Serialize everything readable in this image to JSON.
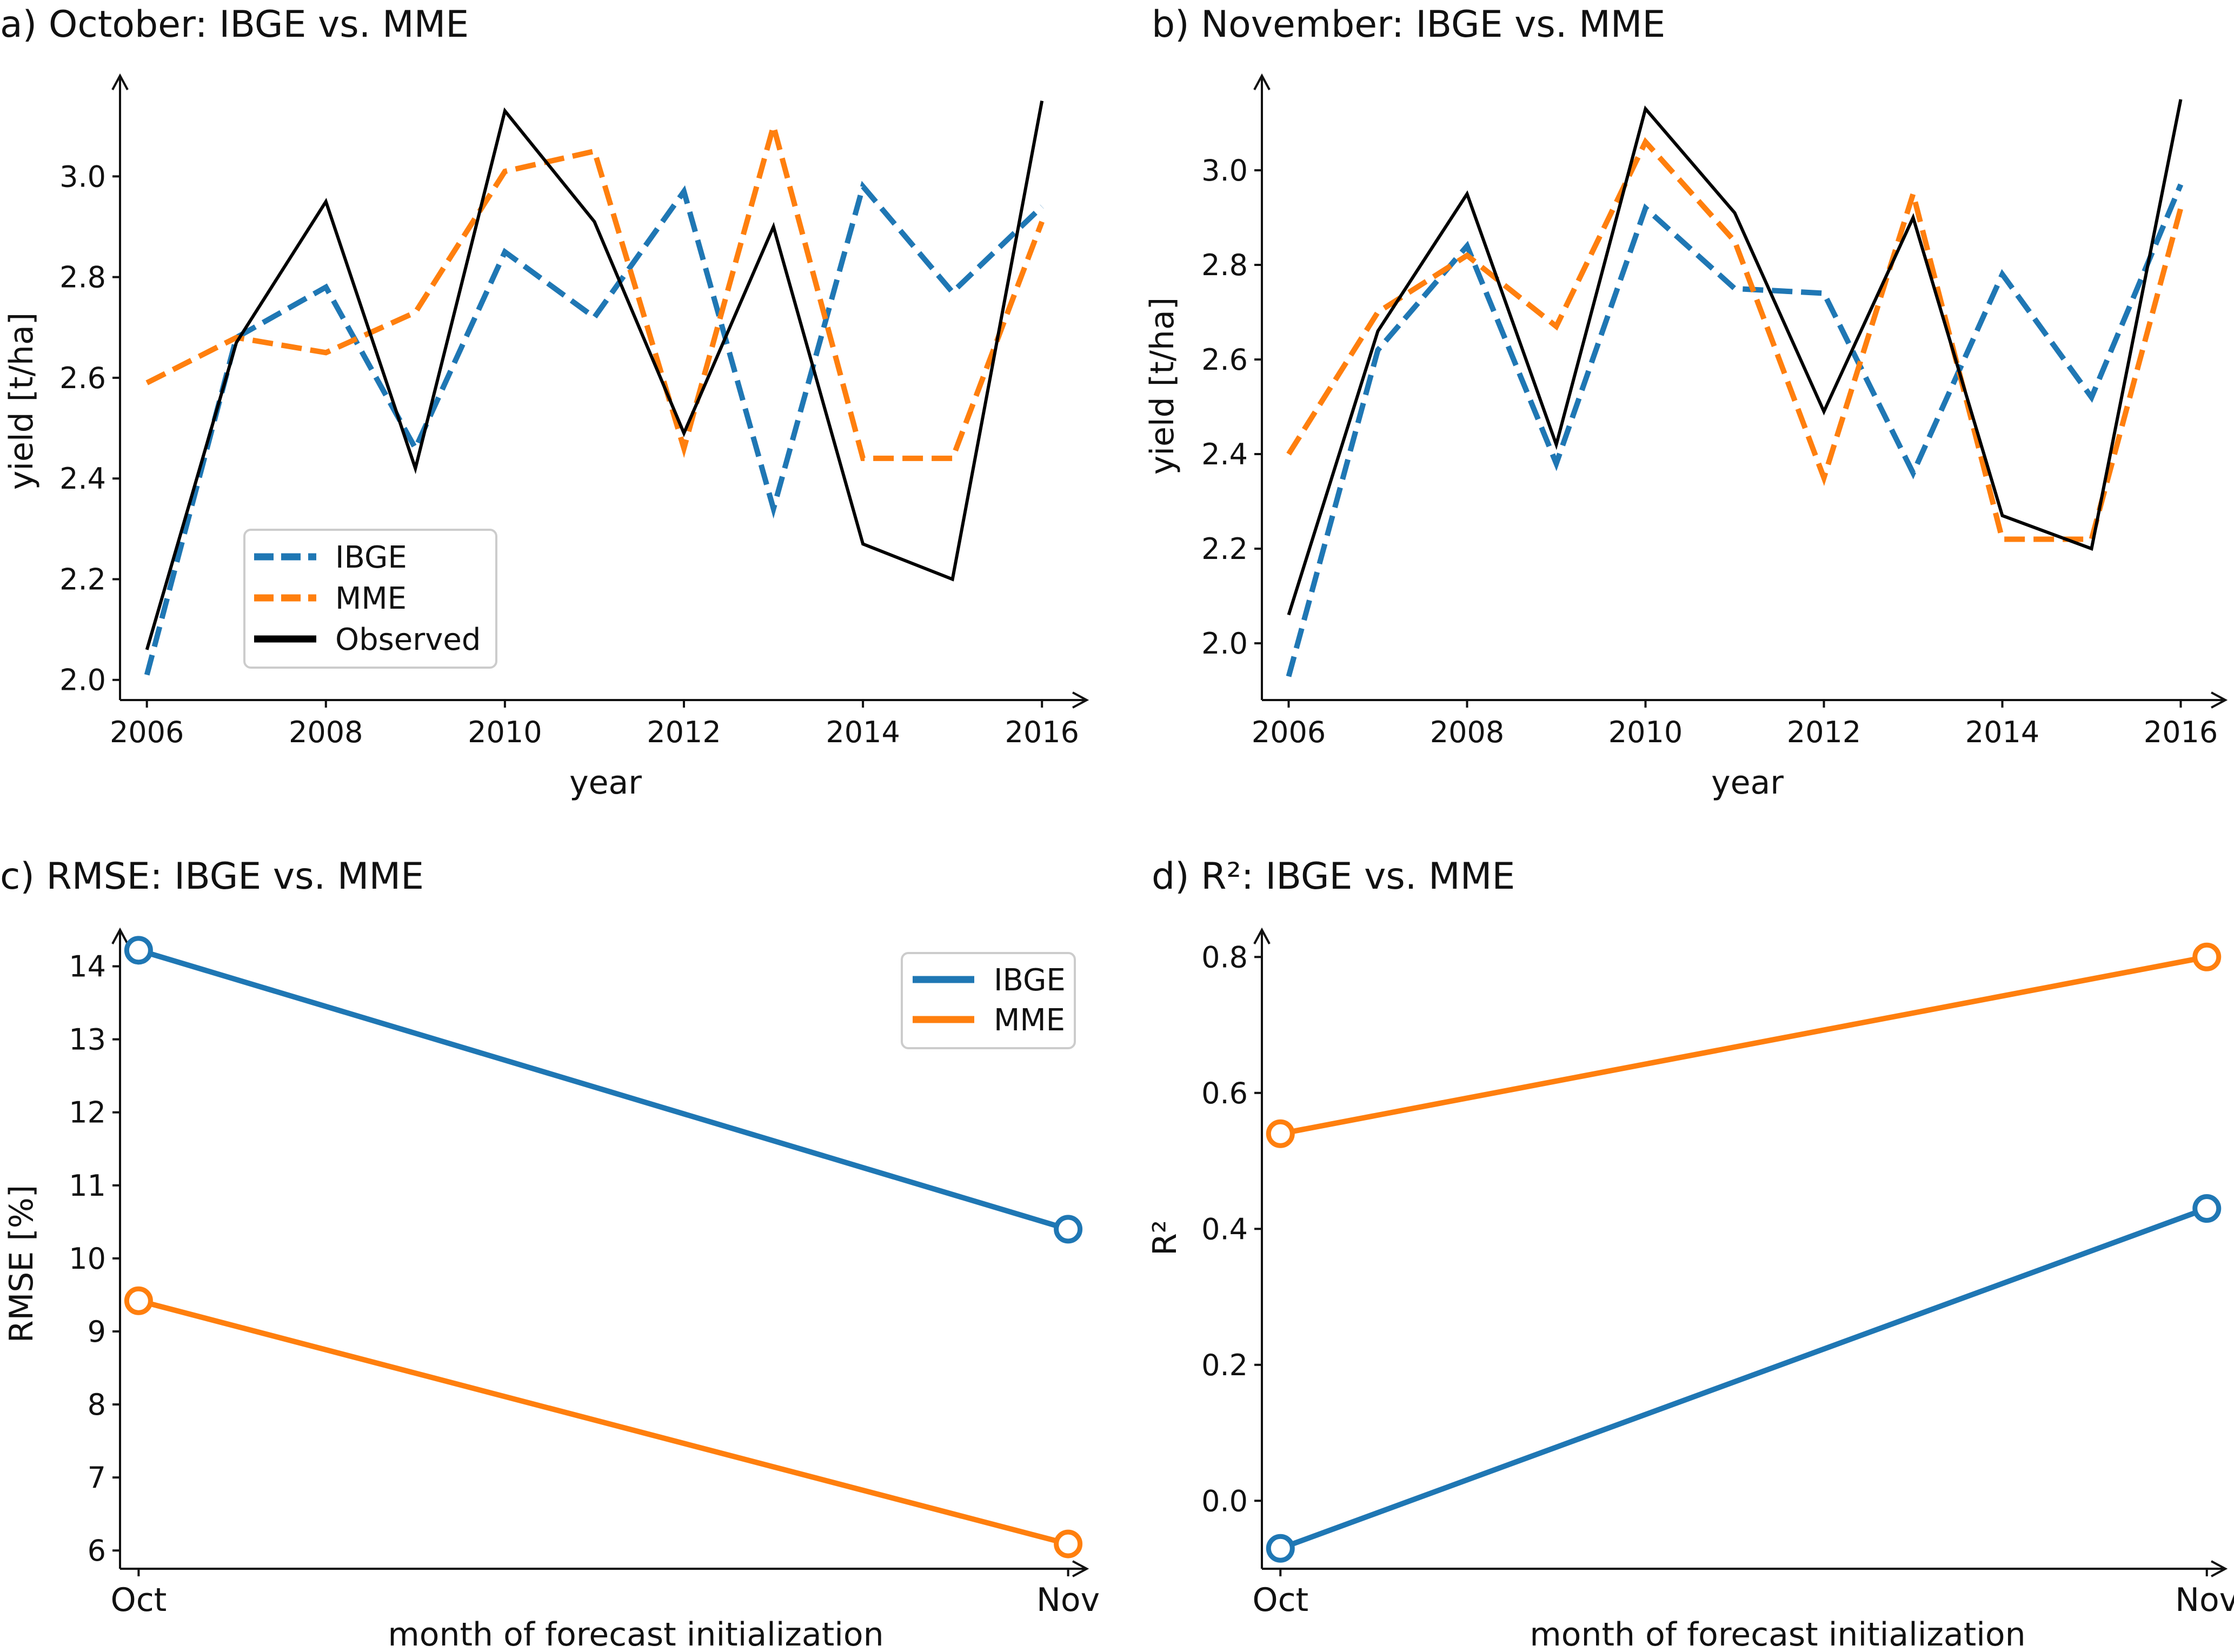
{
  "chart_data": [
    {
      "type": "line",
      "title": "a) October: IBGE vs. MME",
      "xlabel": "year",
      "ylabel": "yield [t/ha]",
      "x": [
        2006,
        2007,
        2008,
        2009,
        2010,
        2011,
        2012,
        2013,
        2014,
        2015,
        2016
      ],
      "xticks": [
        "2006",
        "2008",
        "2010",
        "2012",
        "2014",
        "2016"
      ],
      "yticks": [
        "2.0",
        "2.2",
        "2.4",
        "2.6",
        "2.8",
        "3.0"
      ],
      "xlim": [
        2005.7,
        2016.5
      ],
      "ylim": [
        1.96,
        3.2
      ],
      "grid": false,
      "legend": "lower-left",
      "series": [
        {
          "name": "IBGE",
          "color": "#1f77b4",
          "style": "dashed",
          "values": [
            2.01,
            2.68,
            2.78,
            2.46,
            2.85,
            2.72,
            2.97,
            2.34,
            2.98,
            2.77,
            2.94
          ]
        },
        {
          "name": "MME",
          "color": "#ff7f0e",
          "style": "dashed",
          "values": [
            2.59,
            2.68,
            2.65,
            2.73,
            3.01,
            3.05,
            2.46,
            3.1,
            2.44,
            2.44,
            2.91
          ]
        },
        {
          "name": "Observed",
          "color": "#000000",
          "style": "solid",
          "values": [
            2.06,
            2.67,
            2.95,
            2.42,
            3.13,
            2.91,
            2.49,
            2.9,
            2.27,
            2.2,
            3.15
          ]
        }
      ]
    },
    {
      "type": "line",
      "title": "b) November: IBGE vs. MME",
      "xlabel": "year",
      "ylabel": "yield [t/ha]",
      "x": [
        2006,
        2007,
        2008,
        2009,
        2010,
        2011,
        2012,
        2013,
        2014,
        2015,
        2016
      ],
      "xticks": [
        "2006",
        "2008",
        "2010",
        "2012",
        "2014",
        "2016"
      ],
      "yticks": [
        "2.0",
        "2.2",
        "2.4",
        "2.6",
        "2.8",
        "3.0"
      ],
      "xlim": [
        2005.7,
        2016.5
      ],
      "ylim": [
        1.88,
        3.2
      ],
      "grid": false,
      "series": [
        {
          "name": "IBGE",
          "color": "#1f77b4",
          "style": "dashed",
          "values": [
            1.93,
            2.62,
            2.84,
            2.38,
            2.92,
            2.75,
            2.74,
            2.36,
            2.78,
            2.52,
            2.97
          ]
        },
        {
          "name": "MME",
          "color": "#ff7f0e",
          "style": "dashed",
          "values": [
            2.4,
            2.7,
            2.82,
            2.67,
            3.06,
            2.85,
            2.35,
            2.95,
            2.22,
            2.22,
            2.92
          ]
        },
        {
          "name": "Observed",
          "color": "#000000",
          "style": "solid",
          "values": [
            2.06,
            2.66,
            2.95,
            2.42,
            3.13,
            2.91,
            2.49,
            2.9,
            2.27,
            2.2,
            3.15
          ]
        }
      ]
    },
    {
      "type": "line",
      "title": "c) RMSE: IBGE vs. MME",
      "xlabel": "month of forecast initialization",
      "ylabel": "RMSE [%]",
      "categories": [
        "Oct",
        "Nov"
      ],
      "yticks": [
        "6",
        "7",
        "8",
        "9",
        "10",
        "11",
        "12",
        "13",
        "14"
      ],
      "ylim": [
        5.75,
        14.5
      ],
      "grid": false,
      "legend": "top-right",
      "series": [
        {
          "name": "IBGE",
          "color": "#1f77b4",
          "values": [
            14.22,
            10.4
          ]
        },
        {
          "name": "MME",
          "color": "#ff7f0e",
          "values": [
            9.42,
            6.09
          ]
        }
      ]
    },
    {
      "type": "line",
      "title": "d) R²: IBGE vs. MME",
      "xlabel": "month of forecast initialization",
      "ylabel": "R²",
      "categories": [
        "Oct",
        "Nov"
      ],
      "yticks": [
        "0.0",
        "0.2",
        "0.4",
        "0.6",
        "0.8"
      ],
      "ylim": [
        -0.1,
        0.84
      ],
      "grid": false,
      "series": [
        {
          "name": "IBGE",
          "color": "#1f77b4",
          "values": [
            -0.07,
            0.43
          ]
        },
        {
          "name": "MME",
          "color": "#ff7f0e",
          "values": [
            0.54,
            0.8
          ]
        }
      ]
    }
  ]
}
